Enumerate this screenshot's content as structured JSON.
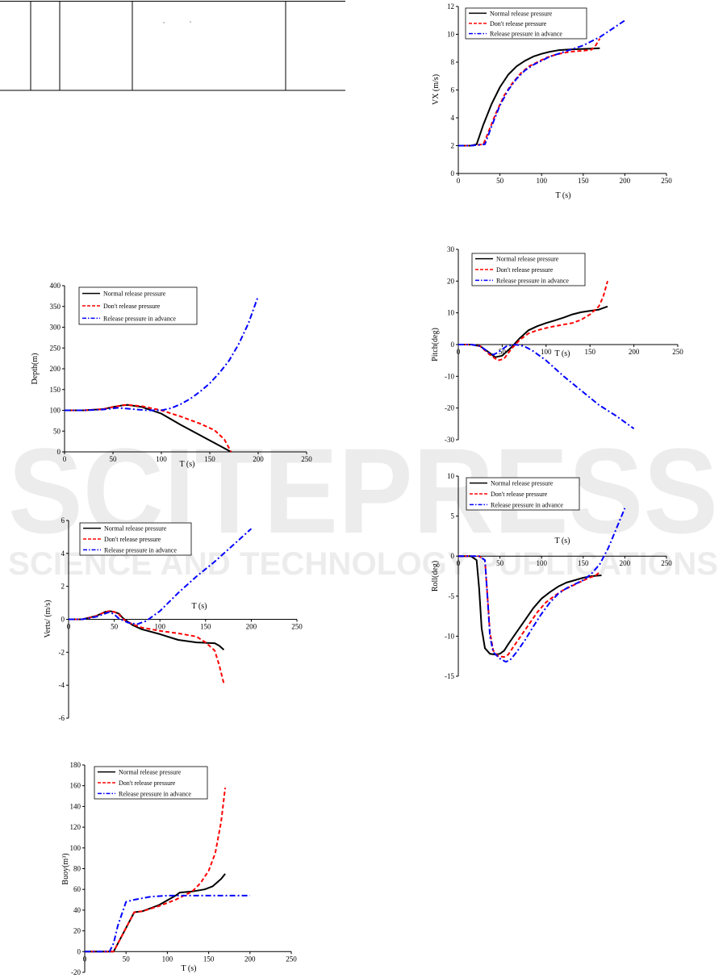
{
  "watermark": {
    "main": "SCITEPRESS",
    "sub": "SCIENCE AND TECHNOLOGY PUBLICATIONS"
  },
  "legend_labels": [
    "Normal release pressure",
    "Don't release pressure",
    "Release pressure in advance"
  ],
  "chart_data": [
    {
      "type": "line",
      "id": "depth",
      "xlabel": "T (s)",
      "ylabel": "Depth(m)",
      "xlim": [
        0,
        250
      ],
      "ylim": [
        0,
        400
      ],
      "xticks": [
        0,
        50,
        100,
        150,
        200,
        250
      ],
      "yticks": [
        0,
        50,
        100,
        150,
        200,
        250,
        300,
        350,
        400
      ],
      "legend": "top-left",
      "series": [
        {
          "name": "Normal release pressure",
          "style": "solid",
          "color": "#000000",
          "x": [
            0,
            20,
            40,
            50,
            60,
            65,
            80,
            100,
            120,
            140,
            160,
            172
          ],
          "y": [
            100,
            100,
            103,
            108,
            112,
            113,
            108,
            92,
            65,
            40,
            15,
            0
          ]
        },
        {
          "name": "Don't release pressure",
          "style": "dashed",
          "color": "#ff0000",
          "x": [
            0,
            20,
            40,
            50,
            60,
            65,
            80,
            100,
            120,
            140,
            155,
            165,
            172
          ],
          "y": [
            100,
            100,
            103,
            108,
            112,
            113,
            110,
            100,
            85,
            68,
            52,
            30,
            0
          ]
        },
        {
          "name": "Release pressure in advance",
          "style": "dashdot",
          "color": "#0000ff",
          "x": [
            0,
            20,
            40,
            55,
            70,
            85,
            100,
            110,
            120,
            130,
            140,
            150,
            160,
            170,
            180,
            190,
            200
          ],
          "y": [
            100,
            100,
            102,
            106,
            103,
            100,
            100,
            105,
            115,
            128,
            145,
            165,
            190,
            220,
            260,
            310,
            375
          ]
        }
      ]
    },
    {
      "type": "line",
      "id": "vertical-speed",
      "xlabel": "T (s)",
      "ylabel": "Verts/ (m/s)",
      "xlim": [
        0,
        250
      ],
      "ylim": [
        -6,
        6
      ],
      "xticks": [
        0,
        50,
        100,
        150,
        200,
        250
      ],
      "yticks": [
        -6,
        -4,
        -2,
        0,
        2,
        4,
        6
      ],
      "legend": "top-left",
      "series": [
        {
          "name": "Normal release pressure",
          "style": "solid",
          "color": "#000000",
          "x": [
            0,
            15,
            30,
            40,
            45,
            50,
            55,
            60,
            70,
            80,
            100,
            120,
            140,
            160,
            165,
            170
          ],
          "y": [
            0,
            0,
            0.2,
            0.45,
            0.5,
            0.45,
            0.35,
            0.05,
            -0.35,
            -0.6,
            -0.9,
            -1.25,
            -1.4,
            -1.45,
            -1.6,
            -1.85
          ]
        },
        {
          "name": "Don't release pressure",
          "style": "dashed",
          "color": "#ff0000",
          "x": [
            0,
            15,
            30,
            40,
            45,
            50,
            55,
            60,
            70,
            80,
            100,
            120,
            140,
            150,
            160,
            165,
            170
          ],
          "y": [
            0,
            0,
            0.2,
            0.45,
            0.5,
            0.45,
            0.3,
            0.0,
            -0.3,
            -0.5,
            -0.7,
            -0.85,
            -1.05,
            -1.4,
            -1.9,
            -2.8,
            -3.9
          ]
        },
        {
          "name": "Release pressure in advance",
          "style": "dashdot",
          "color": "#0000ff",
          "x": [
            0,
            15,
            30,
            40,
            45,
            50,
            55,
            65,
            75,
            85,
            100,
            120,
            140,
            160,
            180,
            200
          ],
          "y": [
            0,
            0,
            0.15,
            0.35,
            0.45,
            0.3,
            0.05,
            -0.2,
            -0.3,
            -0.1,
            0.5,
            1.6,
            2.6,
            3.5,
            4.5,
            5.5
          ]
        }
      ]
    },
    {
      "type": "line",
      "id": "buoyancy",
      "xlabel": "T (s)",
      "ylabel": "Buoy(m³)",
      "xlim": [
        0,
        250
      ],
      "ylim": [
        -20,
        180
      ],
      "xticks": [
        0,
        50,
        100,
        150,
        200,
        250
      ],
      "yticks": [
        -20,
        0,
        20,
        40,
        60,
        80,
        100,
        120,
        140,
        160,
        180
      ],
      "legend": "top-left",
      "series": [
        {
          "name": "Normal release pressure",
          "style": "solid",
          "color": "#000000",
          "x": [
            0,
            30,
            35,
            60,
            70,
            90,
            110,
            115,
            130,
            145,
            155,
            165,
            170
          ],
          "y": [
            0,
            0,
            0,
            38,
            39,
            45,
            54,
            57,
            58,
            60,
            63,
            70,
            75
          ]
        },
        {
          "name": "Don't release pressure",
          "style": "dashed",
          "color": "#ff0000",
          "x": [
            0,
            30,
            35,
            60,
            70,
            90,
            110,
            120,
            130,
            140,
            150,
            158,
            165,
            170
          ],
          "y": [
            0,
            0,
            0,
            38,
            39,
            44,
            50,
            54,
            58,
            66,
            78,
            95,
            125,
            158
          ]
        },
        {
          "name": "Release pressure in advance",
          "style": "dashdot",
          "color": "#0000ff",
          "x": [
            0,
            30,
            35,
            40,
            50,
            60,
            80,
            100,
            120,
            150,
            200
          ],
          "y": [
            0,
            0,
            8,
            25,
            48,
            50,
            53,
            54,
            54,
            54,
            54
          ]
        }
      ]
    },
    {
      "type": "line",
      "id": "vx",
      "xlabel": "T (s)",
      "ylabel": "VX (m/s)",
      "xlim": [
        0,
        250
      ],
      "ylim": [
        0,
        12
      ],
      "xticks": [
        0,
        50,
        100,
        150,
        200,
        250
      ],
      "yticks": [
        0,
        2,
        4,
        6,
        8,
        10,
        12
      ],
      "legend": "top-left",
      "series": [
        {
          "name": "Normal release pressure",
          "style": "solid",
          "color": "#000000",
          "x": [
            0,
            15,
            22,
            30,
            40,
            50,
            60,
            70,
            80,
            90,
            100,
            110,
            120,
            130,
            140,
            150,
            160,
            170
          ],
          "y": [
            2,
            2,
            2.1,
            3.5,
            5.0,
            6.2,
            7.1,
            7.7,
            8.1,
            8.4,
            8.6,
            8.75,
            8.85,
            8.9,
            8.93,
            8.95,
            8.97,
            9.0
          ]
        },
        {
          "name": "Don't release pressure",
          "style": "dashed",
          "color": "#ff0000",
          "x": [
            0,
            15,
            30,
            35,
            45,
            55,
            65,
            75,
            85,
            95,
            105,
            115,
            125,
            135,
            145,
            155,
            160,
            165,
            170
          ],
          "y": [
            2,
            2,
            2.1,
            2.8,
            4.3,
            5.6,
            6.5,
            7.2,
            7.7,
            8.0,
            8.3,
            8.5,
            8.65,
            8.75,
            8.8,
            8.85,
            8.9,
            9.2,
            9.7
          ]
        },
        {
          "name": "Release pressure in advance",
          "style": "dashdot",
          "color": "#0000ff",
          "x": [
            0,
            15,
            32,
            40,
            50,
            60,
            70,
            80,
            90,
            100,
            110,
            120,
            130,
            140,
            150,
            160,
            170,
            180,
            190,
            200
          ],
          "y": [
            2,
            2,
            2.1,
            3.4,
            4.9,
            6.0,
            6.8,
            7.4,
            7.8,
            8.1,
            8.4,
            8.6,
            8.8,
            9.0,
            9.2,
            9.5,
            9.8,
            10.2,
            10.6,
            11.0
          ]
        }
      ]
    },
    {
      "type": "line",
      "id": "pitch",
      "xlabel": "T (s)",
      "ylabel": "Pitch(deg)",
      "xlim": [
        0,
        250
      ],
      "ylim": [
        -30,
        30
      ],
      "xticks": [
        0,
        50,
        100,
        150,
        200,
        250
      ],
      "yticks": [
        -30,
        -20,
        -10,
        0,
        10,
        20,
        30
      ],
      "legend": "top-left",
      "series": [
        {
          "name": "Normal release pressure",
          "style": "solid",
          "color": "#000000",
          "x": [
            0,
            15,
            25,
            35,
            42,
            50,
            60,
            70,
            80,
            90,
            100,
            110,
            120,
            130,
            140,
            150,
            160,
            170
          ],
          "y": [
            0,
            0,
            -0.5,
            -2.5,
            -4,
            -3.5,
            -1,
            2,
            4.5,
            5.8,
            6.8,
            7.6,
            8.5,
            9.5,
            10.2,
            10.6,
            11,
            12
          ]
        },
        {
          "name": "Don't release pressure",
          "style": "dashed",
          "color": "#ff0000",
          "x": [
            0,
            15,
            25,
            35,
            45,
            52,
            60,
            70,
            80,
            90,
            100,
            110,
            120,
            130,
            140,
            150,
            160,
            165,
            170
          ],
          "y": [
            0,
            0,
            -0.5,
            -3,
            -5,
            -4.5,
            -1.5,
            1.5,
            3.5,
            4.5,
            5.2,
            5.8,
            6.3,
            6.8,
            7.8,
            9.5,
            12,
            15,
            20
          ]
        },
        {
          "name": "Release pressure in advance",
          "style": "dashdot",
          "color": "#0000ff",
          "x": [
            0,
            15,
            25,
            35,
            40,
            45,
            55,
            65,
            75,
            85,
            100,
            110,
            120,
            140,
            160,
            180,
            200
          ],
          "y": [
            0,
            0,
            -0.5,
            -2.5,
            -3.2,
            -2.5,
            -0.5,
            0,
            -0.5,
            -2,
            -5,
            -7.5,
            -10,
            -14.5,
            -19,
            -22.5,
            -26.5
          ]
        }
      ]
    },
    {
      "type": "line",
      "id": "roll",
      "xlabel": "T (s)",
      "ylabel": "Roll(deg)",
      "xlim": [
        0,
        250
      ],
      "ylim": [
        -15,
        10
      ],
      "xticks": [
        0,
        50,
        100,
        150,
        200,
        250
      ],
      "yticks": [
        -15,
        -10,
        -5,
        0,
        5,
        10
      ],
      "legend": "top-left",
      "series": [
        {
          "name": "Normal release pressure",
          "style": "solid",
          "color": "#000000",
          "x": [
            0,
            15,
            22,
            25,
            28,
            32,
            38,
            45,
            50,
            55,
            60,
            70,
            80,
            90,
            100,
            110,
            120,
            130,
            140,
            150,
            160,
            172
          ],
          "y": [
            0,
            0,
            -0.5,
            -4,
            -9,
            -11.5,
            -12.2,
            -12.3,
            -12.2,
            -11.8,
            -11,
            -9.5,
            -8,
            -6.5,
            -5.3,
            -4.5,
            -3.8,
            -3.3,
            -3,
            -2.7,
            -2.5,
            -2.4
          ]
        },
        {
          "name": "Don't release pressure",
          "style": "dashed",
          "color": "#ff0000",
          "x": [
            0,
            25,
            32,
            35,
            38,
            42,
            48,
            55,
            60,
            65,
            75,
            85,
            95,
            105,
            115,
            125,
            135,
            145,
            155,
            165,
            170
          ],
          "y": [
            0,
            0,
            -0.5,
            -5,
            -9.5,
            -11.8,
            -12.5,
            -12.6,
            -12.3,
            -11.5,
            -10,
            -8.5,
            -7,
            -5.8,
            -5,
            -4.3,
            -3.8,
            -3.3,
            -2.8,
            -2.4,
            -2
          ]
        },
        {
          "name": "Release pressure in advance",
          "style": "dashdot",
          "color": "#0000ff",
          "x": [
            0,
            25,
            32,
            35,
            38,
            42,
            50,
            57,
            62,
            70,
            80,
            90,
            100,
            110,
            120,
            130,
            140,
            150,
            160,
            170,
            180,
            190,
            200
          ],
          "y": [
            0,
            0,
            -0.5,
            -5,
            -10,
            -12,
            -12.8,
            -13.2,
            -13,
            -12,
            -10.5,
            -8.8,
            -7.2,
            -5.8,
            -4.7,
            -4,
            -3.5,
            -3,
            -2.2,
            -1,
            1,
            3.5,
            6
          ]
        }
      ]
    }
  ]
}
